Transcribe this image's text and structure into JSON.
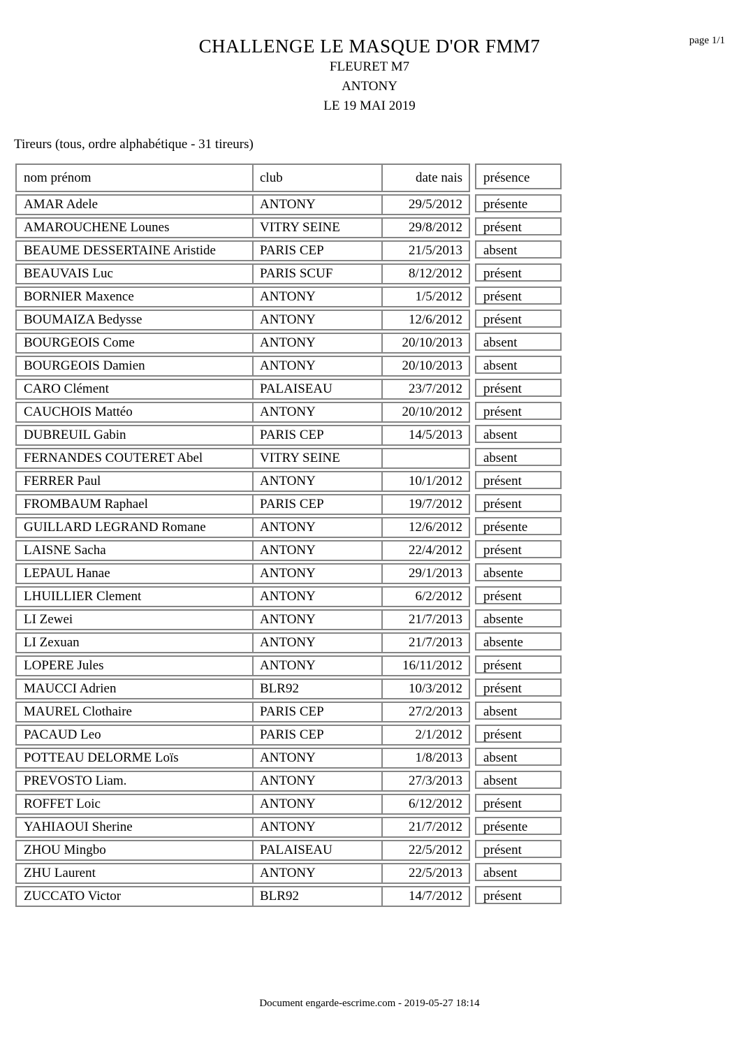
{
  "header": {
    "page_label": "page 1/1",
    "title": "CHALLENGE LE MASQUE D'OR FMM7",
    "weapon": "FLEURET M7",
    "location": "ANTONY",
    "date": "LE 19 MAI 2019"
  },
  "section_label": "Tireurs (tous, ordre alphabétique - 31 tireurs)",
  "table": {
    "columns": {
      "name": "nom prénom",
      "club": "club",
      "birthdate": "date nais",
      "presence": "présence"
    },
    "rows": [
      {
        "name": "AMAR Adele",
        "club": "ANTONY",
        "birthdate": "29/5/2012",
        "presence": "présente"
      },
      {
        "name": "AMAROUCHENE Lounes",
        "club": "VITRY SEINE",
        "birthdate": "29/8/2012",
        "presence": "présent"
      },
      {
        "name": "BEAUME DESSERTAINE Aristide",
        "club": "PARIS CEP",
        "birthdate": "21/5/2013",
        "presence": "absent"
      },
      {
        "name": "BEAUVAIS Luc",
        "club": "PARIS SCUF",
        "birthdate": "8/12/2012",
        "presence": "présent"
      },
      {
        "name": "BORNIER Maxence",
        "club": "ANTONY",
        "birthdate": "1/5/2012",
        "presence": "présent"
      },
      {
        "name": "BOUMAIZA Bedysse",
        "club": "ANTONY",
        "birthdate": "12/6/2012",
        "presence": "présent"
      },
      {
        "name": "BOURGEOIS Come",
        "club": "ANTONY",
        "birthdate": "20/10/2013",
        "presence": "absent"
      },
      {
        "name": "BOURGEOIS Damien",
        "club": "ANTONY",
        "birthdate": "20/10/2013",
        "presence": "absent"
      },
      {
        "name": "CARO Clément",
        "club": "PALAISEAU",
        "birthdate": "23/7/2012",
        "presence": "présent"
      },
      {
        "name": "CAUCHOIS Mattéo",
        "club": "ANTONY",
        "birthdate": "20/10/2012",
        "presence": "présent"
      },
      {
        "name": "DUBREUIL Gabin",
        "club": "PARIS CEP",
        "birthdate": "14/5/2013",
        "presence": "absent"
      },
      {
        "name": "FERNANDES COUTERET Abel",
        "club": "VITRY SEINE",
        "birthdate": "",
        "presence": "absent"
      },
      {
        "name": "FERRER Paul",
        "club": "ANTONY",
        "birthdate": "10/1/2012",
        "presence": "présent"
      },
      {
        "name": "FROMBAUM Raphael",
        "club": "PARIS CEP",
        "birthdate": "19/7/2012",
        "presence": "présent"
      },
      {
        "name": "GUILLARD LEGRAND Romane",
        "club": "ANTONY",
        "birthdate": "12/6/2012",
        "presence": "présente"
      },
      {
        "name": "LAISNE Sacha",
        "club": "ANTONY",
        "birthdate": "22/4/2012",
        "presence": "présent"
      },
      {
        "name": "LEPAUL Hanae",
        "club": "ANTONY",
        "birthdate": "29/1/2013",
        "presence": "absente"
      },
      {
        "name": "LHUILLIER Clement",
        "club": "ANTONY",
        "birthdate": "6/2/2012",
        "presence": "présent"
      },
      {
        "name": "LI Zewei",
        "club": "ANTONY",
        "birthdate": "21/7/2013",
        "presence": "absente"
      },
      {
        "name": "LI Zexuan",
        "club": "ANTONY",
        "birthdate": "21/7/2013",
        "presence": "absente"
      },
      {
        "name": "LOPERE Jules",
        "club": "ANTONY",
        "birthdate": "16/11/2012",
        "presence": "présent"
      },
      {
        "name": "MAUCCI Adrien",
        "club": "BLR92",
        "birthdate": "10/3/2012",
        "presence": "présent"
      },
      {
        "name": "MAUREL Clothaire",
        "club": "PARIS CEP",
        "birthdate": "27/2/2013",
        "presence": "absent"
      },
      {
        "name": "PACAUD Leo",
        "club": "PARIS CEP",
        "birthdate": "2/1/2012",
        "presence": "présent"
      },
      {
        "name": "POTTEAU DELORME Loïs",
        "club": "ANTONY",
        "birthdate": "1/8/2013",
        "presence": "absent"
      },
      {
        "name": "PREVOSTO Liam.",
        "club": "ANTONY",
        "birthdate": "27/3/2013",
        "presence": "absent"
      },
      {
        "name": "ROFFET Loic",
        "club": "ANTONY",
        "birthdate": "6/12/2012",
        "presence": "présent"
      },
      {
        "name": "YAHIAOUI Sherine",
        "club": "ANTONY",
        "birthdate": "21/7/2012",
        "presence": "présente"
      },
      {
        "name": "ZHOU Mingbo",
        "club": "PALAISEAU",
        "birthdate": "22/5/2012",
        "presence": "présent"
      },
      {
        "name": "ZHU Laurent",
        "club": "ANTONY",
        "birthdate": "22/5/2013",
        "presence": "absent"
      },
      {
        "name": "ZUCCATO Victor",
        "club": "BLR92",
        "birthdate": "14/7/2012",
        "presence": "présent"
      }
    ]
  },
  "footer": {
    "text": "Document engarde-escrime.com  - 2019-05-27 18:14"
  },
  "colors": {
    "border": "#858585",
    "text": "#000000",
    "background": "#ffffff"
  }
}
